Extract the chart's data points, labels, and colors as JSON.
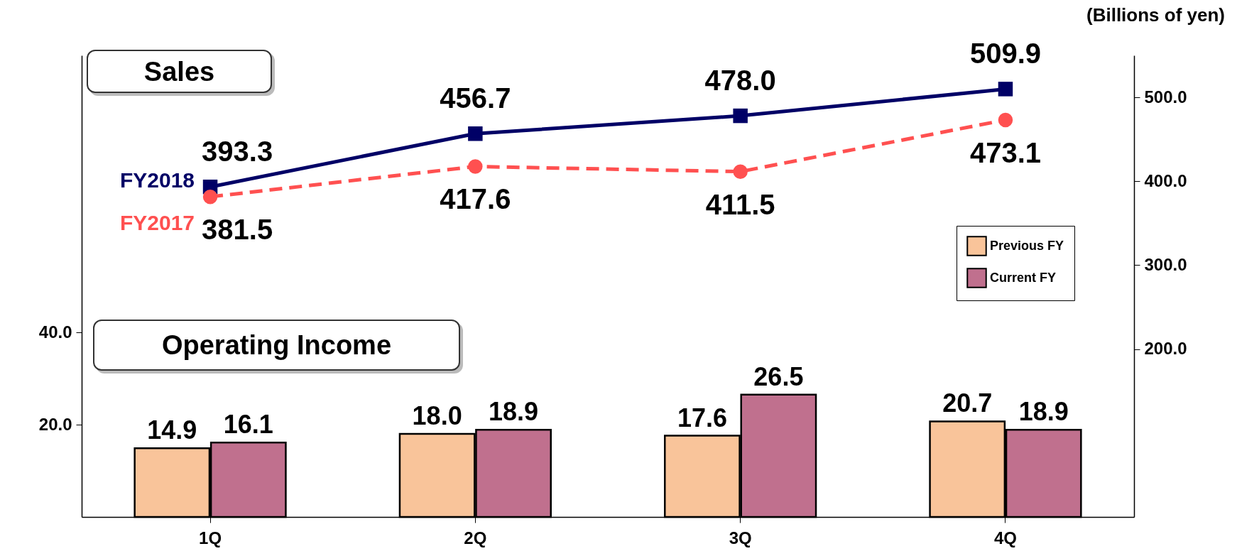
{
  "chart_data": {
    "type": "bar",
    "categories": [
      "1Q",
      "2Q",
      "3Q",
      "4Q"
    ],
    "annotations": [
      "Sales",
      "Operating Income",
      "(Billions of yen)"
    ],
    "ylim": [
      0,
      100
    ],
    "yticks": [
      {
        "value": 20,
        "label": "20.0"
      },
      {
        "value": 40,
        "label": "40.0"
      }
    ],
    "y2lim": [
      0,
      550
    ],
    "y2ticks": [
      {
        "value": 200,
        "label": "200.0"
      },
      {
        "value": 300,
        "label": "300.0"
      },
      {
        "value": 400,
        "label": "400.0"
      },
      {
        "value": 500,
        "label": "500.0"
      }
    ],
    "grid": false,
    "legend": "right",
    "series": [
      {
        "name": "Previous FY",
        "color": "#f9c49a",
        "values": [
          14.9,
          18.0,
          17.6,
          20.7
        ],
        "value_labels": [
          "14.9",
          "18.0",
          "17.6",
          "20.7"
        ]
      },
      {
        "name": "Current FY",
        "color": "#c0708e",
        "values": [
          16.1,
          18.9,
          26.5,
          18.9
        ],
        "value_labels": [
          "16.1",
          "18.9",
          "26.5",
          "18.9"
        ]
      },
      {
        "name": "FY2018",
        "type": "line",
        "axis": "y2",
        "color": "#000066",
        "marker": "square",
        "line_style": "solid",
        "values": [
          393.3,
          456.7,
          478.0,
          509.9
        ],
        "value_labels": [
          "393.3",
          "456.7",
          "478.0",
          "509.9"
        ]
      },
      {
        "name": "FY2017",
        "type": "line",
        "axis": "y2",
        "color": "#ff5050",
        "marker": "circle",
        "line_style": "dashed",
        "values": [
          381.5,
          417.6,
          411.5,
          473.1
        ],
        "value_labels": [
          "381.5",
          "417.6",
          "411.5",
          "473.1"
        ]
      }
    ]
  }
}
